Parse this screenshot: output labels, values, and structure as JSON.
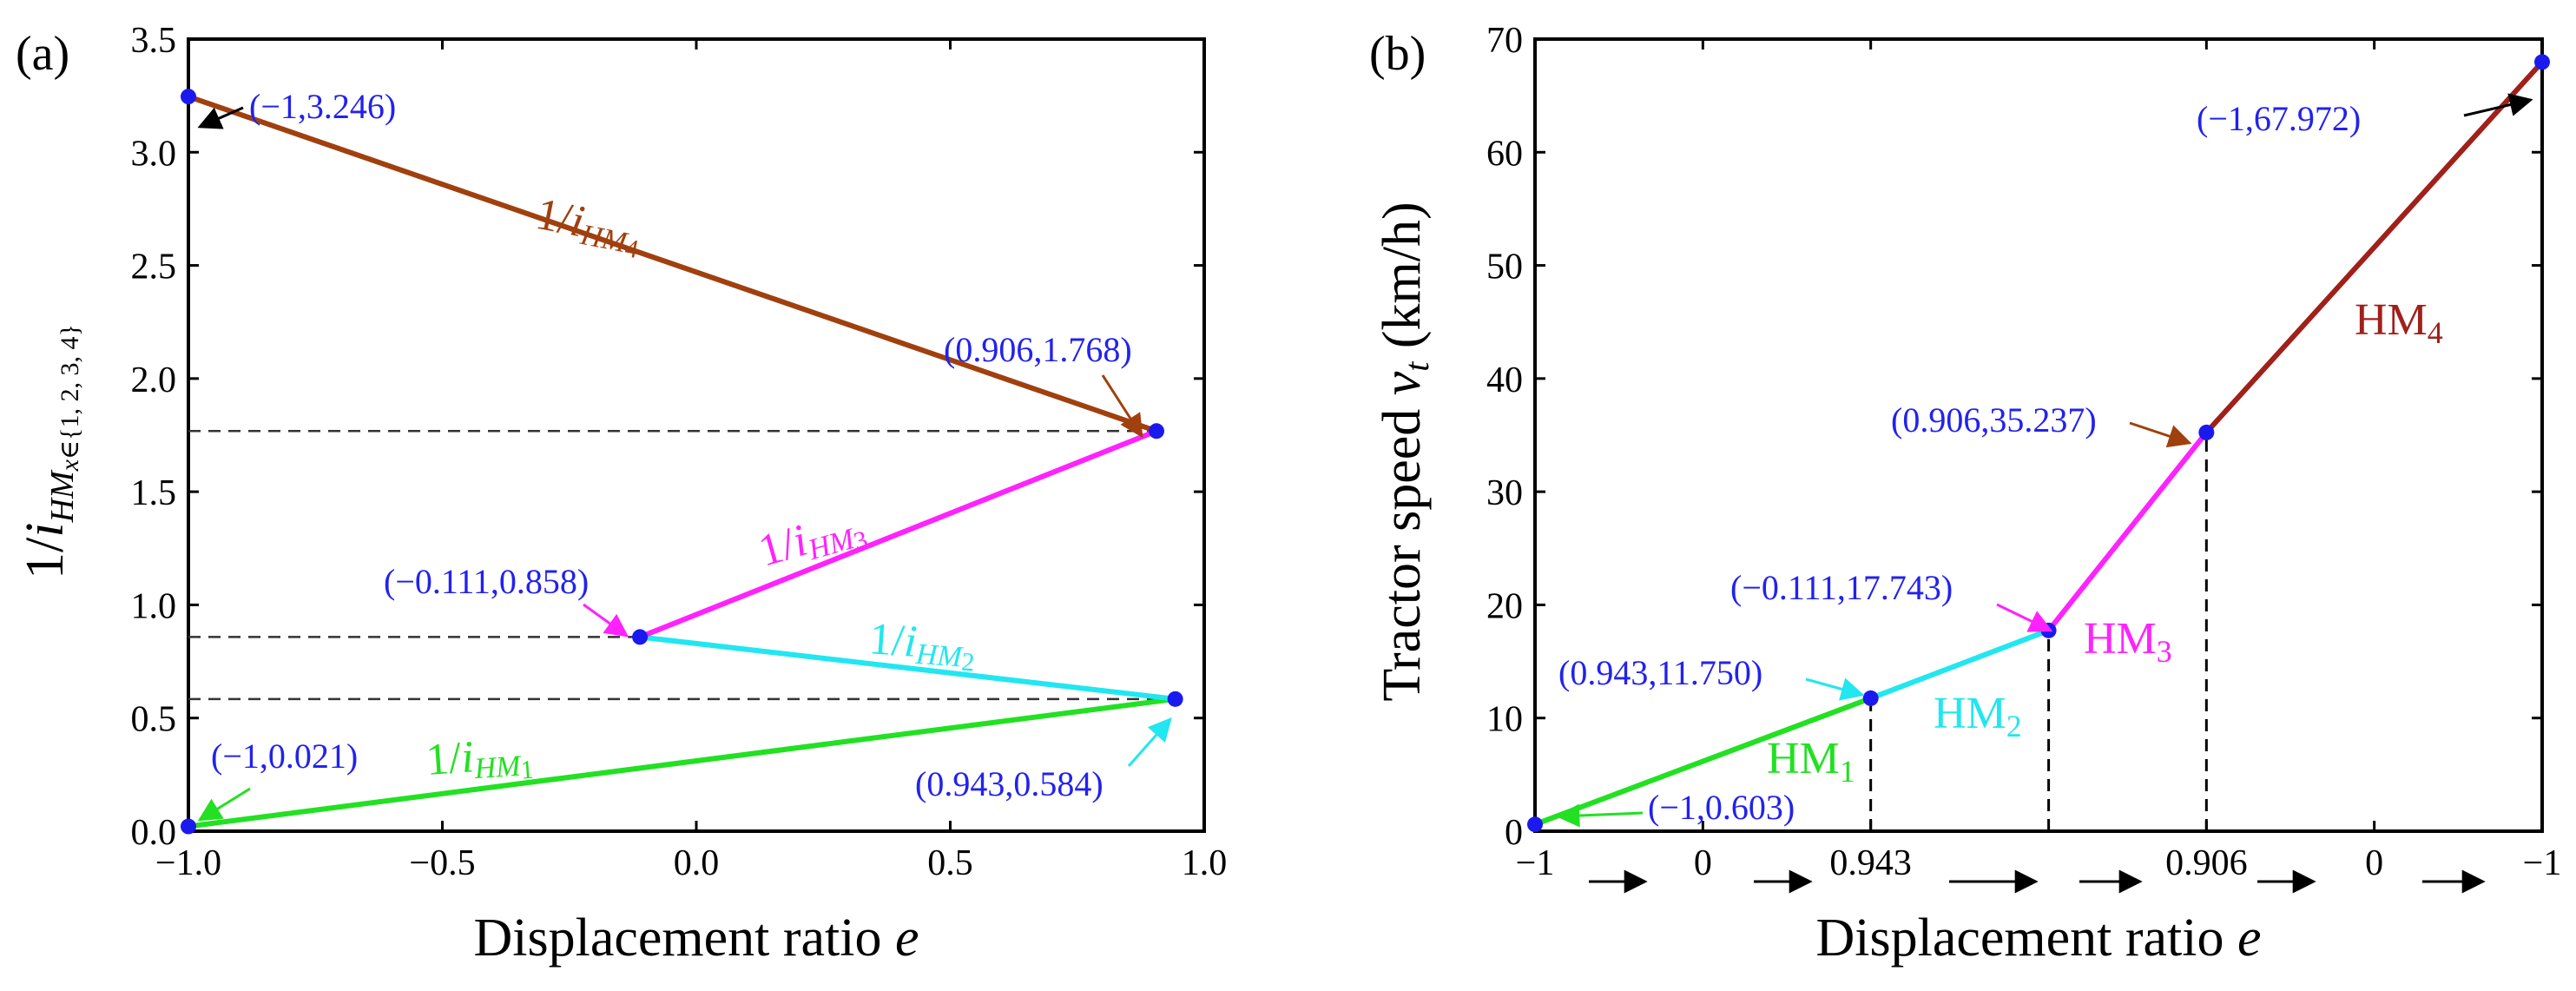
{
  "chart_data": [
    {
      "type": "line",
      "panel_label": "(a)",
      "xlabel": "Displacement ratio ",
      "xlabel_italic": "e",
      "ylabel_main": "1/",
      "ylabel_i": "i",
      "ylabel_sub_hm": "HM",
      "ylabel_sub_x": "x",
      "ylabel_sub_set": "∈{1, 2, 3, 4}",
      "xlim": [
        -1.0,
        1.0
      ],
      "ylim": [
        0.0,
        3.5
      ],
      "xticks": [
        "−1.0",
        "−0.5",
        "0.0",
        "0.5",
        "1.0"
      ],
      "xtick_values": [
        -1.0,
        -0.5,
        0.0,
        0.5,
        1.0
      ],
      "yticks": [
        "0.0",
        "0.5",
        "1.0",
        "1.5",
        "2.0",
        "2.5",
        "3.0",
        "3.5"
      ],
      "ytick_values": [
        0.0,
        0.5,
        1.0,
        1.5,
        2.0,
        2.5,
        3.0,
        3.5
      ],
      "series": [
        {
          "name": "1/iHM1",
          "label_prefix": "1/",
          "label_i": "i",
          "label_sub": "HM",
          "label_num": "1",
          "color": "#22e022",
          "x": [
            -1.0,
            0.943
          ],
          "y": [
            0.021,
            0.584
          ]
        },
        {
          "name": "1/iHM2",
          "label_prefix": "1/",
          "label_i": "i",
          "label_sub": "HM",
          "label_num": "2",
          "color": "#22e6f0",
          "x": [
            0.943,
            -0.111
          ],
          "y": [
            0.584,
            0.858
          ]
        },
        {
          "name": "1/iHM3",
          "label_prefix": "1/",
          "label_i": "i",
          "label_sub": "HM",
          "label_num": "3",
          "color": "#ff22ff",
          "x": [
            -0.111,
            0.906
          ],
          "y": [
            0.858,
            1.768
          ]
        },
        {
          "name": "1/iHM4",
          "label_prefix": "1/",
          "label_i": "i",
          "label_sub": "HM",
          "label_num": "4",
          "color": "#a0400e",
          "x": [
            -1.0,
            0.906
          ],
          "y": [
            3.246,
            1.768
          ]
        }
      ],
      "points": [
        {
          "x": -1.0,
          "y": 0.021,
          "label": "(−1,0.021)"
        },
        {
          "x": 0.943,
          "y": 0.584,
          "label": "(0.943,0.584)"
        },
        {
          "x": -0.111,
          "y": 0.858,
          "label": "(−0.111,0.858)"
        },
        {
          "x": 0.906,
          "y": 1.768,
          "label": "(0.906,1.768)"
        },
        {
          "x": -1.0,
          "y": 3.246,
          "label": "(−1,3.246)"
        }
      ],
      "reference_lines_y": [
        0.584,
        0.858,
        1.768
      ]
    },
    {
      "type": "line",
      "panel_label": "(b)",
      "xlabel": "Displacement ratio ",
      "xlabel_italic": "e",
      "ylabel_main": "Tractor speed ",
      "ylabel_v": "v",
      "ylabel_sub": "t",
      "ylabel_unit": " (km/h)",
      "xlim": [
        0,
        6
      ],
      "ylim": [
        0,
        70
      ],
      "xticks": [
        "−1",
        "0",
        "0.943",
        "0.906",
        "0",
        "−1"
      ],
      "xtick_positions": [
        0,
        1,
        2,
        4,
        5,
        6
      ],
      "yticks": [
        "0",
        "10",
        "20",
        "30",
        "40",
        "50",
        "60",
        "70"
      ],
      "ytick_values": [
        0,
        10,
        20,
        30,
        40,
        50,
        60,
        70
      ],
      "series": [
        {
          "name": "HM1",
          "label": "HM",
          "label_num": "1",
          "color": "#22e022",
          "x": [
            0,
            2
          ],
          "y": [
            0.603,
            11.75
          ]
        },
        {
          "name": "HM2",
          "label": "HM",
          "label_num": "2",
          "color": "#22e6f0",
          "x": [
            2,
            3.06
          ],
          "y": [
            11.75,
            17.743
          ]
        },
        {
          "name": "HM3",
          "label": "HM",
          "label_num": "3",
          "color": "#ff22ff",
          "x": [
            3.06,
            4
          ],
          "y": [
            17.743,
            35.237
          ]
        },
        {
          "name": "HM4",
          "label": "HM",
          "label_num": "4",
          "color": "#a0201a",
          "x": [
            4,
            6
          ],
          "y": [
            35.237,
            67.972
          ]
        }
      ],
      "points": [
        {
          "x": 0,
          "y": 0.603,
          "label": "(−1,0.603)"
        },
        {
          "x": 2,
          "y": 11.75,
          "label": "(0.943,11.750)"
        },
        {
          "x": 3.06,
          "y": 17.743,
          "label": "(−0.111,17.743)"
        },
        {
          "x": 4,
          "y": 35.237,
          "label": "(0.906,35.237)"
        },
        {
          "x": 6,
          "y": 67.972,
          "label": "(−1,67.972)"
        }
      ],
      "reference_lines_x": [
        2,
        3.06,
        4
      ]
    }
  ]
}
